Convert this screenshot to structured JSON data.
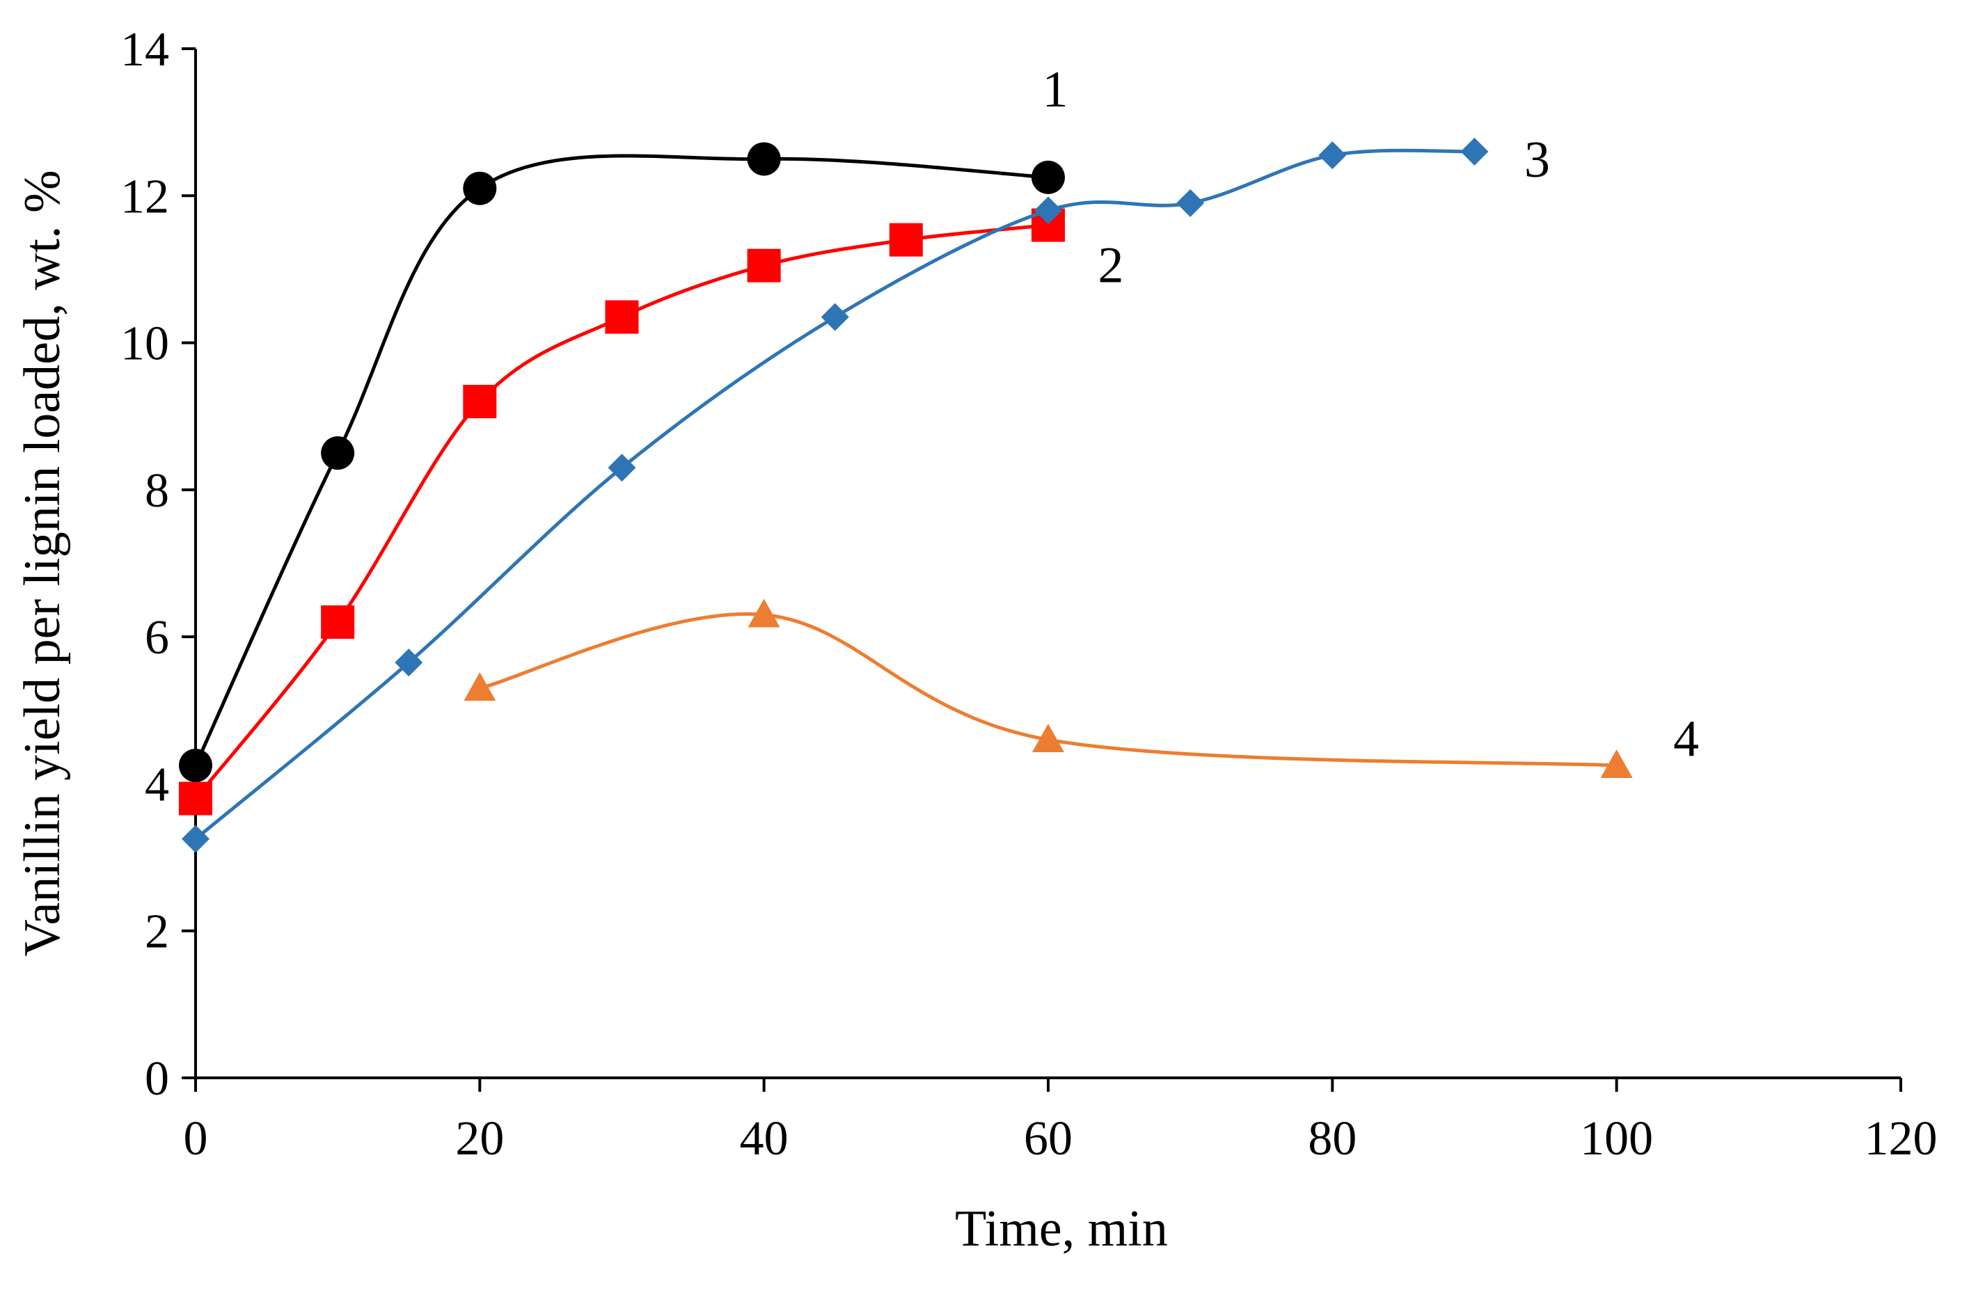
{
  "chart_data": {
    "type": "line",
    "title": "",
    "xlabel": "Time, min",
    "ylabel": "Vanillin yield per lignin loaded, wt. %",
    "xlim": [
      0,
      120
    ],
    "ylim": [
      0,
      14
    ],
    "xticks": [
      0,
      20,
      40,
      60,
      80,
      100,
      120
    ],
    "yticks": [
      0,
      2,
      4,
      6,
      8,
      10,
      12,
      14
    ],
    "grid": false,
    "legend": "none",
    "series": [
      {
        "name": "1",
        "color": "#000000",
        "marker": "circle",
        "x": [
          0,
          10,
          20,
          40,
          60
        ],
        "values": [
          4.25,
          8.5,
          12.1,
          12.5,
          12.25
        ]
      },
      {
        "name": "2",
        "color": "#ff0000",
        "marker": "square",
        "x": [
          0,
          10,
          20,
          30,
          40,
          50,
          60
        ],
        "values": [
          3.8,
          6.2,
          9.2,
          10.35,
          11.05,
          11.4,
          11.6
        ]
      },
      {
        "name": "3",
        "color": "#2e75b6",
        "marker": "diamond",
        "x": [
          0,
          15,
          30,
          45,
          60,
          70,
          80,
          90
        ],
        "values": [
          3.25,
          5.65,
          8.3,
          10.35,
          11.8,
          11.9,
          12.55,
          12.6
        ]
      },
      {
        "name": "4",
        "color": "#ed7d31",
        "marker": "triangle",
        "x": [
          20,
          40,
          60,
          100
        ],
        "values": [
          5.3,
          6.3,
          4.6,
          4.25
        ]
      }
    ]
  }
}
